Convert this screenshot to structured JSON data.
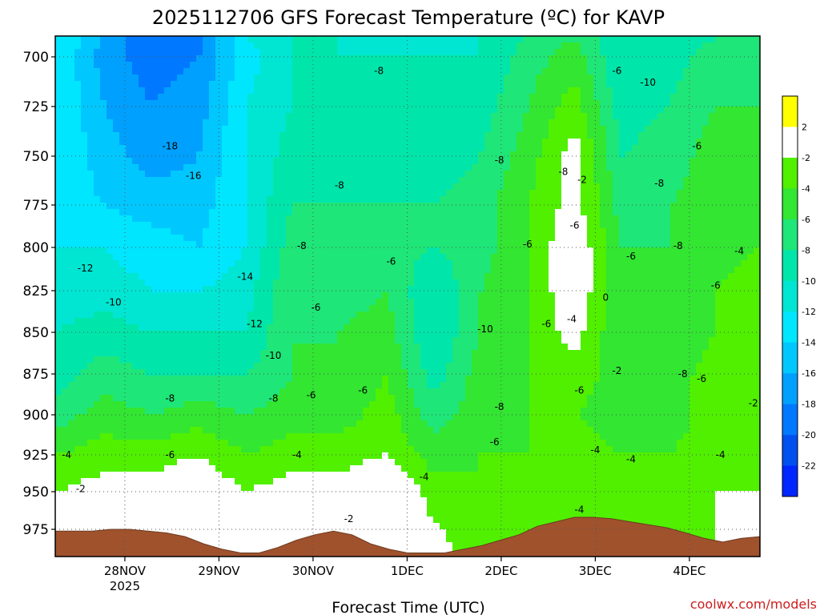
{
  "title": "2025112706 GFS Forecast Temperature (ºC) for KAVP",
  "xlabel": "Forecast Time (UTC)",
  "credit": "coolwx.com/models",
  "chart_data": {
    "type": "heatmap",
    "title": "2025112706 GFS Forecast Temperature (ºC) for KAVP",
    "xlabel": "Forecast Time (UTC)",
    "ylabel": "",
    "x_ticks": [
      {
        "x": 0.72,
        "label": "28NOV",
        "sub": "2025"
      },
      {
        "x": 1.72,
        "label": "29NOV",
        "sub": ""
      },
      {
        "x": 2.72,
        "label": "30NOV",
        "sub": ""
      },
      {
        "x": 3.72,
        "label": "1DEC",
        "sub": ""
      },
      {
        "x": 4.72,
        "label": "2DEC",
        "sub": ""
      },
      {
        "x": 5.72,
        "label": "3DEC",
        "sub": ""
      },
      {
        "x": 6.72,
        "label": "4DEC",
        "sub": ""
      }
    ],
    "xlim": [
      -0.02,
      7.47
    ],
    "y_ticks": [
      700,
      725,
      750,
      775,
      800,
      825,
      850,
      875,
      900,
      925,
      950,
      975
    ],
    "ylim": [
      990,
      689
    ],
    "grid": true,
    "colorbar": {
      "labels": [
        2,
        -2,
        -4,
        -6,
        -8,
        -10,
        -12,
        -14,
        -16,
        -18,
        -20,
        -22
      ],
      "colors": [
        "#ffff00",
        "#ffffff",
        "#50f000",
        "#32e632",
        "#1ee678",
        "#00e6aa",
        "#00e6d2",
        "#00e6ff",
        "#00c8ff",
        "#00a0ff",
        "#0078ff",
        "#0050f0",
        "#0026ff"
      ]
    },
    "series": [
      {
        "x": 0.0,
        "values": [
          -12,
          -12,
          -12,
          -12,
          -13,
          -12,
          -11,
          -10,
          -9,
          -7,
          -4,
          -2,
          -1
        ]
      },
      {
        "x": 0.5,
        "values": [
          -16,
          -17,
          -16,
          -15,
          -14,
          -12,
          -11,
          -9,
          -7,
          -5,
          -3,
          -1,
          0
        ]
      },
      {
        "x": 1.0,
        "values": [
          -20,
          -19,
          -18,
          -17,
          -15,
          -13,
          -12,
          -10,
          -8,
          -6,
          -3,
          -1,
          0
        ]
      },
      {
        "x": 1.5,
        "values": [
          -19,
          -18,
          -17,
          -16,
          -15,
          -14,
          -12,
          -10,
          -8,
          -5,
          -2,
          0,
          1
        ]
      },
      {
        "x": 2.0,
        "values": [
          -12,
          -13,
          -12,
          -12,
          -12,
          -12,
          -11,
          -10,
          -8,
          -6,
          -4,
          -2,
          -1
        ]
      },
      {
        "x": 2.5,
        "values": [
          -10,
          -10,
          -10,
          -9,
          -8,
          -7,
          -6,
          -6,
          -6,
          -5,
          -3,
          -1,
          0
        ]
      },
      {
        "x": 3.0,
        "values": [
          -10,
          -10,
          -9,
          -9,
          -8,
          -8,
          -7,
          -6,
          -6,
          -5,
          -3,
          -1,
          0
        ]
      },
      {
        "x": 3.5,
        "values": [
          -11,
          -10,
          -10,
          -9,
          -8,
          -7,
          -6,
          -5,
          -4,
          -3,
          -2,
          1,
          2
        ]
      },
      {
        "x": 4.0,
        "values": [
          -11,
          -10,
          -9,
          -9,
          -8,
          -8,
          -10,
          -10,
          -9,
          -7,
          -5,
          -3,
          -1
        ]
      },
      {
        "x": 4.5,
        "values": [
          -10,
          -10,
          -9,
          -8,
          -7,
          -7,
          -6,
          -6,
          -5,
          -5,
          -4,
          -4,
          -3
        ]
      },
      {
        "x": 5.0,
        "values": [
          -8,
          -7,
          -6,
          -5,
          -4,
          -4,
          -4,
          -4,
          -4,
          -4,
          -4,
          -3,
          -3
        ]
      },
      {
        "x": 5.5,
        "values": [
          -6,
          -5,
          -3,
          -1,
          -1,
          0,
          0,
          -1,
          -3,
          -4,
          -3,
          -3,
          -3
        ]
      },
      {
        "x": 6.0,
        "values": [
          -10,
          -10,
          -9,
          -8,
          -7,
          -6,
          -6,
          -6,
          -5,
          -5,
          -4,
          -3,
          -3
        ]
      },
      {
        "x": 6.5,
        "values": [
          -10,
          -9,
          -8,
          -7,
          -6,
          -6,
          -6,
          -6,
          -5,
          -5,
          -4,
          -4,
          -4
        ]
      },
      {
        "x": 7.0,
        "values": [
          -8,
          -7,
          -6,
          -5,
          -5,
          -5,
          -4,
          -4,
          -3,
          -3,
          -3,
          -2,
          -2
        ]
      },
      {
        "x": 7.45,
        "values": [
          -8,
          -7,
          -6,
          -5,
          -5,
          -4,
          -3,
          -2,
          -2,
          -3,
          -3,
          -2,
          -2
        ]
      }
    ],
    "pressure_levels": [
      690,
      700,
      725,
      750,
      775,
      800,
      825,
      850,
      875,
      900,
      925,
      950,
      990
    ],
    "contour_labels": [
      {
        "x": 0.3,
        "p": 812,
        "text": "-12"
      },
      {
        "x": 0.6,
        "p": 832,
        "text": "-10"
      },
      {
        "x": 0.1,
        "p": 925,
        "text": "-4"
      },
      {
        "x": 0.25,
        "p": 948,
        "text": "-2"
      },
      {
        "x": 1.2,
        "p": 745,
        "text": "-18"
      },
      {
        "x": 1.45,
        "p": 760,
        "text": "-16"
      },
      {
        "x": 1.2,
        "p": 890,
        "text": "-8"
      },
      {
        "x": 1.2,
        "p": 925,
        "text": "-6"
      },
      {
        "x": 2.0,
        "p": 817,
        "text": "-14"
      },
      {
        "x": 2.1,
        "p": 845,
        "text": "-12"
      },
      {
        "x": 2.3,
        "p": 864,
        "text": "-10"
      },
      {
        "x": 2.3,
        "p": 890,
        "text": "-8"
      },
      {
        "x": 2.7,
        "p": 888,
        "text": "-6"
      },
      {
        "x": 2.55,
        "p": 925,
        "text": "-4"
      },
      {
        "x": 2.6,
        "p": 799,
        "text": "-8"
      },
      {
        "x": 2.75,
        "p": 835,
        "text": "-6"
      },
      {
        "x": 3.0,
        "p": 765,
        "text": "-8"
      },
      {
        "x": 3.42,
        "p": 707,
        "text": "-8"
      },
      {
        "x": 3.25,
        "p": 885,
        "text": "-6"
      },
      {
        "x": 3.55,
        "p": 808,
        "text": "-6"
      },
      {
        "x": 3.9,
        "p": 940,
        "text": "-4"
      },
      {
        "x": 3.1,
        "p": 968,
        "text": "-2"
      },
      {
        "x": 4.55,
        "p": 848,
        "text": "-10"
      },
      {
        "x": 4.7,
        "p": 895,
        "text": "-8"
      },
      {
        "x": 4.7,
        "p": 752,
        "text": "-8"
      },
      {
        "x": 4.65,
        "p": 917,
        "text": "-6"
      },
      {
        "x": 5.0,
        "p": 798,
        "text": "-6"
      },
      {
        "x": 5.2,
        "p": 845,
        "text": "-6"
      },
      {
        "x": 5.38,
        "p": 758,
        "text": "-8"
      },
      {
        "x": 5.5,
        "p": 787,
        "text": "-6"
      },
      {
        "x": 5.58,
        "p": 762,
        "text": "-2"
      },
      {
        "x": 5.95,
        "p": 707,
        "text": "-6"
      },
      {
        "x": 6.28,
        "p": 713,
        "text": "-10"
      },
      {
        "x": 5.47,
        "p": 842,
        "text": "-4"
      },
      {
        "x": 5.55,
        "p": 885,
        "text": "-6"
      },
      {
        "x": 5.72,
        "p": 922,
        "text": "-4"
      },
      {
        "x": 5.55,
        "p": 962,
        "text": "-4"
      },
      {
        "x": 5.95,
        "p": 873,
        "text": "-2"
      },
      {
        "x": 5.83,
        "p": 829,
        "text": "0"
      },
      {
        "x": 6.1,
        "p": 805,
        "text": "-6"
      },
      {
        "x": 6.1,
        "p": 928,
        "text": "-4"
      },
      {
        "x": 6.4,
        "p": 764,
        "text": "-8"
      },
      {
        "x": 6.6,
        "p": 799,
        "text": "-8"
      },
      {
        "x": 6.8,
        "p": 745,
        "text": "-6"
      },
      {
        "x": 7.0,
        "p": 822,
        "text": "-6"
      },
      {
        "x": 7.25,
        "p": 802,
        "text": "-4"
      },
      {
        "x": 6.65,
        "p": 875,
        "text": "-8"
      },
      {
        "x": 6.85,
        "p": 878,
        "text": "-6"
      },
      {
        "x": 7.05,
        "p": 925,
        "text": "-4"
      },
      {
        "x": 7.4,
        "p": 893,
        "text": "-2"
      }
    ],
    "terrain_surface_hpa": [
      976,
      976,
      976,
      975,
      975,
      976,
      977,
      979,
      983,
      986,
      988,
      988,
      985,
      981,
      978,
      976,
      978,
      983,
      986,
      988,
      988,
      988,
      986,
      984,
      981,
      978,
      973,
      970,
      967,
      967,
      968,
      970,
      972,
      974,
      977,
      980,
      982,
      980,
      979
    ]
  }
}
